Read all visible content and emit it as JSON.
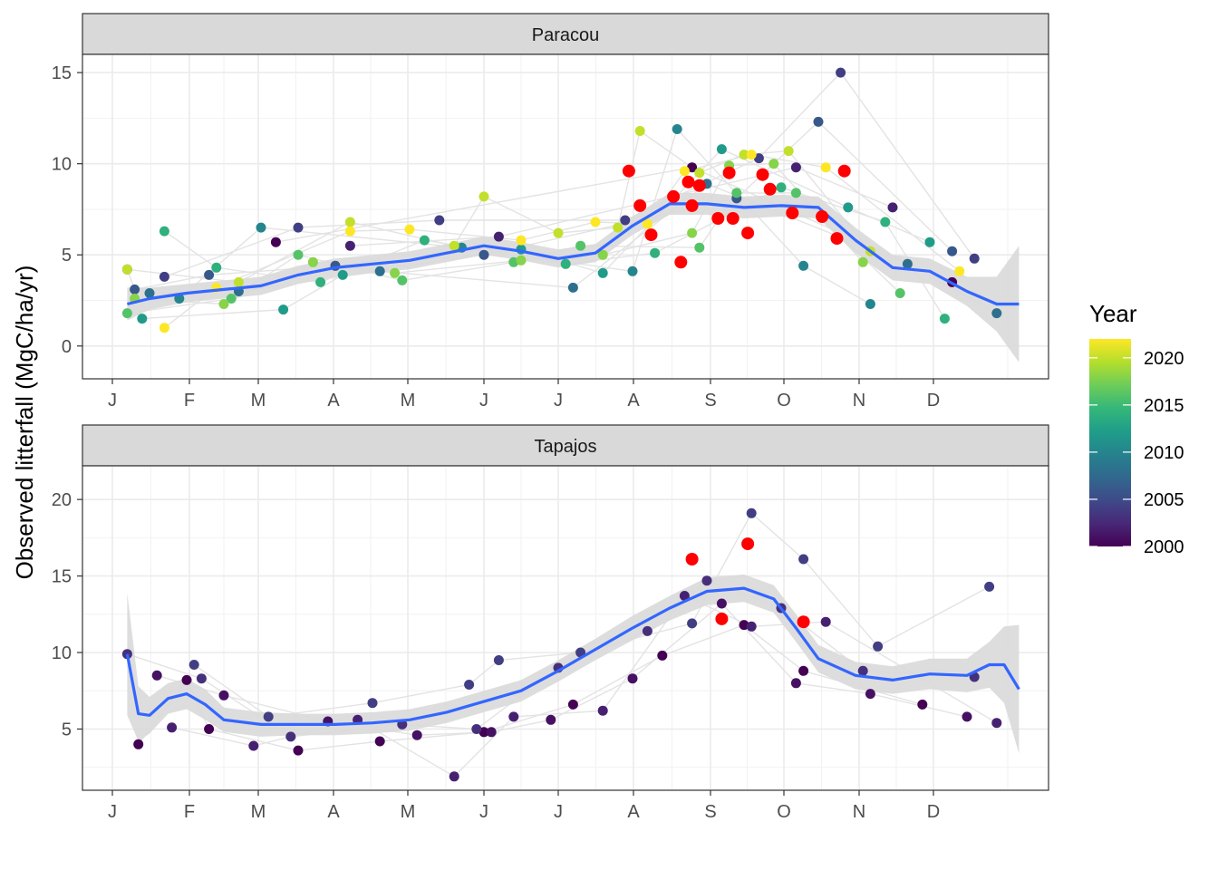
{
  "chart_data": {
    "type": "scatter",
    "ylabel": "Observed litterfall (MgC/ha/yr)",
    "x_tick_labels": [
      "J",
      "F",
      "M",
      "A",
      "M",
      "J",
      "J",
      "A",
      "S",
      "O",
      "N",
      "D"
    ],
    "legend": {
      "title": "Year",
      "range": [
        2000,
        2022
      ],
      "ticks": [
        2000,
        2005,
        2010,
        2015,
        2020
      ],
      "colors": [
        "#440154",
        "#482878",
        "#3E4A89",
        "#31688E",
        "#26828E",
        "#1F9E89",
        "#35B779",
        "#6DCD59",
        "#B4DE2C",
        "#FDE725"
      ],
      "placement": "right"
    },
    "highlight_color": "#FF0000",
    "smooth_line_color": "#3366FF",
    "ribbon_color": "#D9D9D9",
    "panels": [
      {
        "title": "Paracou",
        "ylim": [
          -1.8,
          16
        ],
        "yticks": [
          0,
          5,
          10,
          15
        ],
        "xlim": [
          0,
          12.45
        ],
        "smooth": {
          "x": [
            0.2,
            0.5,
            1,
            1.5,
            2,
            2.5,
            3,
            3.5,
            4,
            4.5,
            5,
            5.5,
            6,
            6.5,
            7,
            7.5,
            8,
            8.5,
            9,
            9.5,
            10,
            10.5,
            11,
            11.5,
            11.9,
            12.2
          ],
          "y": [
            2.3,
            2.6,
            2.9,
            3.1,
            3.3,
            3.9,
            4.3,
            4.5,
            4.7,
            5.1,
            5.5,
            5.2,
            4.8,
            5.1,
            6.6,
            7.8,
            7.8,
            7.6,
            7.7,
            7.6,
            5.8,
            4.3,
            4.1,
            3.0,
            2.3,
            2.3
          ],
          "band": [
            0.9,
            0.6,
            0.5,
            0.5,
            0.5,
            0.5,
            0.5,
            0.5,
            0.5,
            0.5,
            0.5,
            0.5,
            0.5,
            0.5,
            0.5,
            0.6,
            0.6,
            0.6,
            0.6,
            0.6,
            0.7,
            0.7,
            0.7,
            0.8,
            1.5,
            3.2
          ]
        },
        "series": [
          {
            "year": 2000,
            "x": [
              2.2,
              7.8,
              11.3
            ],
            "y": [
              5.7,
              9.8,
              3.5
            ]
          },
          {
            "year": 2002,
            "x": [
              3.2,
              5.2,
              9.2,
              10.5
            ],
            "y": [
              5.5,
              6.0,
              9.8,
              7.6
            ]
          },
          {
            "year": 2004,
            "x": [
              0.7,
              2.5,
              4.4,
              6.9,
              8.7,
              9.8,
              11.6
            ],
            "y": [
              3.8,
              6.5,
              6.9,
              6.9,
              10.3,
              15.0,
              4.8
            ]
          },
          {
            "year": 2006,
            "x": [
              0.3,
              1.3,
              3.0,
              5.0,
              8.4,
              9.5,
              11.3,
              0.2
            ],
            "y": [
              3.1,
              3.9,
              4.4,
              5.0,
              8.1,
              12.3,
              5.2,
              4.2
            ]
          },
          {
            "year": 2008,
            "x": [
              0.5,
              1.7,
              3.6,
              6.2,
              8.0,
              10.7,
              11.9
            ],
            "y": [
              2.9,
              3.0,
              4.1,
              3.2,
              8.9,
              4.5,
              1.8
            ]
          },
          {
            "year": 2010,
            "x": [
              0.9,
              2.0,
              4.7,
              7.0,
              7.6,
              9.3,
              10.2
            ],
            "y": [
              2.6,
              6.5,
              5.4,
              4.1,
              11.9,
              4.4,
              2.3
            ]
          },
          {
            "year": 2012,
            "x": [
              0.4,
              2.3,
              3.1,
              5.5,
              6.6,
              8.2,
              9.9,
              11.0
            ],
            "y": [
              1.5,
              2.0,
              3.9,
              5.3,
              4.0,
              10.8,
              7.6,
              5.7
            ]
          },
          {
            "year": 2014,
            "x": [
              0.7,
              1.4,
              2.8,
              4.2,
              6.1,
              7.3,
              9.0,
              10.4,
              11.2
            ],
            "y": [
              6.3,
              4.3,
              3.5,
              5.8,
              4.5,
              5.1,
              8.7,
              6.8,
              1.5
            ]
          },
          {
            "year": 2016,
            "x": [
              0.2,
              1.6,
              2.5,
              3.9,
              5.4,
              6.3,
              7.9,
              8.4,
              9.2,
              10.6
            ],
            "y": [
              1.8,
              2.6,
              5.0,
              3.6,
              4.6,
              5.5,
              5.4,
              8.4,
              8.4,
              2.9
            ]
          },
          {
            "year": 2018,
            "x": [
              0.3,
              1.5,
              2.7,
              3.8,
              5.5,
              6.6,
              7.8,
              8.3,
              8.9,
              10.1
            ],
            "y": [
              2.6,
              2.3,
              4.6,
              4.0,
              4.7,
              5.0,
              6.2,
              9.9,
              10.0,
              4.6
            ]
          },
          {
            "year": 2020,
            "x": [
              0.2,
              1.7,
              3.2,
              4.6,
              5.0,
              6.0,
              6.8,
              7.1,
              7.9,
              8.5,
              9.1,
              10.2
            ],
            "y": [
              4.2,
              3.5,
              6.8,
              5.5,
              8.2,
              6.2,
              6.5,
              11.8,
              9.5,
              10.5,
              10.7,
              5.2
            ]
          },
          {
            "year": 2022,
            "x": [
              0.7,
              1.4,
              3.2,
              4.0,
              5.5,
              6.5,
              7.2,
              7.7,
              8.6,
              9.6,
              11.4
            ],
            "y": [
              1.0,
              3.2,
              6.3,
              6.4,
              5.8,
              6.8,
              6.7,
              9.6,
              10.5,
              9.8,
              4.1
            ]
          }
        ],
        "highlight": {
          "x": [
            6.95,
            7.1,
            7.25,
            7.55,
            7.65,
            7.75,
            7.8,
            7.9,
            8.15,
            8.3,
            8.35,
            8.55,
            8.75,
            8.85,
            9.15,
            9.55,
            9.75,
            9.85
          ],
          "y": [
            9.6,
            7.7,
            6.1,
            8.2,
            4.6,
            9.0,
            7.7,
            8.8,
            7.0,
            9.5,
            7.0,
            6.2,
            9.4,
            8.6,
            7.3,
            7.1,
            5.9,
            9.6
          ]
        }
      },
      {
        "title": "Tapajos",
        "ylim": [
          1,
          22.2
        ],
        "yticks": [
          5,
          10,
          15,
          20
        ],
        "xlim": [
          0,
          12.45
        ],
        "smooth": {
          "x": [
            0.2,
            0.35,
            0.5,
            0.75,
            1.0,
            1.25,
            1.5,
            2,
            2.5,
            3,
            3.5,
            4,
            4.5,
            5,
            5.5,
            6,
            6.5,
            7,
            7.5,
            8,
            8.5,
            8.9,
            9.2,
            9.5,
            10,
            10.5,
            11,
            11.5,
            11.8,
            12.0,
            12.2
          ],
          "y": [
            9.9,
            6.0,
            5.9,
            7.0,
            7.3,
            6.6,
            5.6,
            5.3,
            5.3,
            5.3,
            5.4,
            5.6,
            6.1,
            6.8,
            7.5,
            8.8,
            10.2,
            11.6,
            12.9,
            14.0,
            14.2,
            13.5,
            11.6,
            9.6,
            8.5,
            8.2,
            8.6,
            8.5,
            9.2,
            9.2,
            7.6
          ],
          "band": [
            4.0,
            1.8,
            1.2,
            1.0,
            1.0,
            1.0,
            0.8,
            0.8,
            0.7,
            0.7,
            0.7,
            0.7,
            0.7,
            0.7,
            0.7,
            0.7,
            0.7,
            0.8,
            0.8,
            0.9,
            0.9,
            0.9,
            0.9,
            0.9,
            0.9,
            0.9,
            1.0,
            1.1,
            1.5,
            2.5,
            4.2
          ]
        },
        "series": [
          {
            "year": 2000,
            "x": [
              0.35,
              1.0,
              1.3,
              2.5,
              3.6,
              5.0,
              6.2,
              7.4,
              8.5,
              9.3,
              10.9
            ],
            "y": [
              4.0,
              8.2,
              5.0,
              3.6,
              4.2,
              4.8,
              6.6,
              9.8,
              11.8,
              8.8,
              6.6
            ]
          },
          {
            "year": 2001,
            "x": [
              0.6,
              1.5,
              2.9,
              4.1,
              5.1,
              5.9,
              7.0,
              8.2,
              9.2,
              10.2,
              11.5
            ],
            "y": [
              8.5,
              7.2,
              5.5,
              4.6,
              4.8,
              5.6,
              8.3,
              13.2,
              8.0,
              7.3,
              5.8
            ]
          },
          {
            "year": 2002,
            "x": [
              0.8,
              1.9,
              3.3,
              4.6,
              5.4,
              6.6,
              7.7,
              8.6,
              9.6,
              11.9
            ],
            "y": [
              5.1,
              3.9,
              5.6,
              1.9,
              5.8,
              6.2,
              13.7,
              11.7,
              12.0,
              5.4
            ]
          },
          {
            "year": 2003,
            "x": [
              0.2,
              1.2,
              2.4,
              3.9,
              4.9,
              6.0,
              7.2,
              8.0,
              9.0,
              10.1,
              11.6
            ],
            "y": [
              9.9,
              8.3,
              4.5,
              5.3,
              5.0,
              9.0,
              11.4,
              14.7,
              12.9,
              8.8,
              8.4
            ]
          },
          {
            "year": 2004,
            "x": [
              1.1,
              2.1,
              3.5,
              4.8,
              5.2,
              6.3,
              7.8,
              8.6,
              9.3,
              10.3,
              11.8
            ],
            "y": [
              9.2,
              5.8,
              6.7,
              7.9,
              9.5,
              10.0,
              11.9,
              19.1,
              16.1,
              10.4,
              14.3
            ]
          }
        ],
        "highlight": {
          "x": [
            7.8,
            8.2,
            8.55,
            9.3
          ],
          "y": [
            16.1,
            12.2,
            17.1,
            12.0
          ]
        }
      }
    ]
  }
}
